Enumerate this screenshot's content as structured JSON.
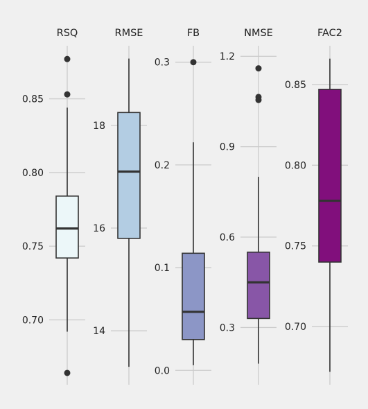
{
  "chart_data": [
    {
      "type": "box",
      "title": "RSQ",
      "ylim": [
        0.656,
        0.886
      ],
      "yticks": [
        0.7,
        0.75,
        0.8,
        0.85
      ],
      "ytick_labels": [
        "0.70",
        "0.75",
        "0.80",
        "0.85"
      ],
      "box": {
        "whisker_low": 0.692,
        "q1": 0.742,
        "median": 0.762,
        "q3": 0.784,
        "whisker_high": 0.844
      },
      "outliers": [
        0.877,
        0.853,
        0.664
      ],
      "color": "#ecf7f9"
    },
    {
      "type": "box",
      "title": "RMSE",
      "ylim": [
        12.95,
        19.55
      ],
      "yticks": [
        14,
        16,
        18
      ],
      "ytick_labels": [
        "14",
        "16",
        "18"
      ],
      "box": {
        "whisker_low": 13.3,
        "q1": 15.8,
        "median": 17.1,
        "q3": 18.25,
        "whisker_high": 19.3
      },
      "outliers": [],
      "color": "#b3cde3"
    },
    {
      "type": "box",
      "title": "FB",
      "ylim": [
        -0.014,
        0.316
      ],
      "yticks": [
        0.0,
        0.1,
        0.2,
        0.3
      ],
      "ytick_labels": [
        "0.0",
        "0.1",
        "0.2",
        "0.3"
      ],
      "box": {
        "whisker_low": 0.005,
        "q1": 0.03,
        "median": 0.057,
        "q3": 0.114,
        "whisker_high": 0.222
      },
      "outliers": [
        0.3
      ],
      "color": "#8c96c6"
    },
    {
      "type": "box",
      "title": "NMSE",
      "ylim": [
        0.11,
        1.235
      ],
      "yticks": [
        0.3,
        0.6,
        0.9,
        1.2
      ],
      "ytick_labels": [
        "0.3",
        "0.6",
        "0.9",
        "1.2"
      ],
      "box": {
        "whisker_low": 0.18,
        "q1": 0.33,
        "median": 0.45,
        "q3": 0.55,
        "whisker_high": 0.8
      },
      "outliers": [
        1.16,
        1.065,
        1.055
      ],
      "color": "#8856a7"
    },
    {
      "type": "box",
      "title": "FAC2",
      "ylim": [
        0.664,
        0.874
      ],
      "yticks": [
        0.7,
        0.75,
        0.8,
        0.85
      ],
      "ytick_labels": [
        "0.70",
        "0.75",
        "0.80",
        "0.85"
      ],
      "box": {
        "whisker_low": 0.672,
        "q1": 0.74,
        "median": 0.778,
        "q3": 0.847,
        "whisker_high": 0.866
      },
      "outliers": [],
      "color": "#810f7c"
    }
  ]
}
